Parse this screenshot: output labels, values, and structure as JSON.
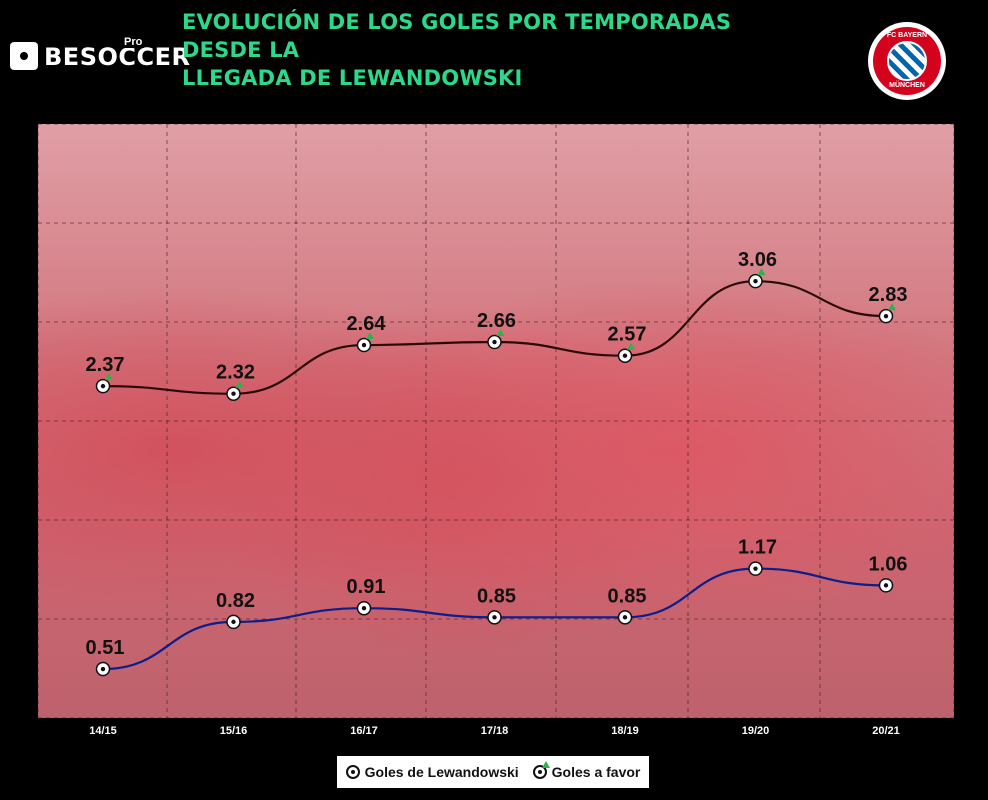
{
  "header": {
    "brand": "BESOCCER",
    "brand_tag": "Pro",
    "title_line1": "EVOLUCIÓN DE LOS GOLES POR TEMPORADAS DESDE LA",
    "title_line2": "LLEGADA DE LEWANDOWSKI",
    "badge_top": "FC BAYERN",
    "badge_bottom": "MÜNCHEN"
  },
  "colors": {
    "title": "#2bd98a",
    "lewandowski_line": "#0a1e8c",
    "team_line": "#2a0a08",
    "legend_arrow": "#2fb24a"
  },
  "legend": {
    "lewandowski_label": "Goles de Lewandowski",
    "team_label": "Goles a favor"
  },
  "chart_data": {
    "type": "line",
    "categories": [
      "14/15",
      "15/16",
      "16/17",
      "17/18",
      "18/19",
      "19/20",
      "20/21"
    ],
    "series": [
      {
        "name": "Goles de Lewandowski",
        "values": [
          0.51,
          0.82,
          0.91,
          0.85,
          0.85,
          1.17,
          1.06
        ],
        "color": "#0a1e8c",
        "marker": "ball"
      },
      {
        "name": "Goles a favor",
        "values": [
          2.37,
          2.32,
          2.64,
          2.66,
          2.57,
          3.06,
          2.83
        ],
        "color": "#2a0a08",
        "marker": "ball-up"
      }
    ],
    "grid": "dashed",
    "legend_position": "bottom-center"
  }
}
